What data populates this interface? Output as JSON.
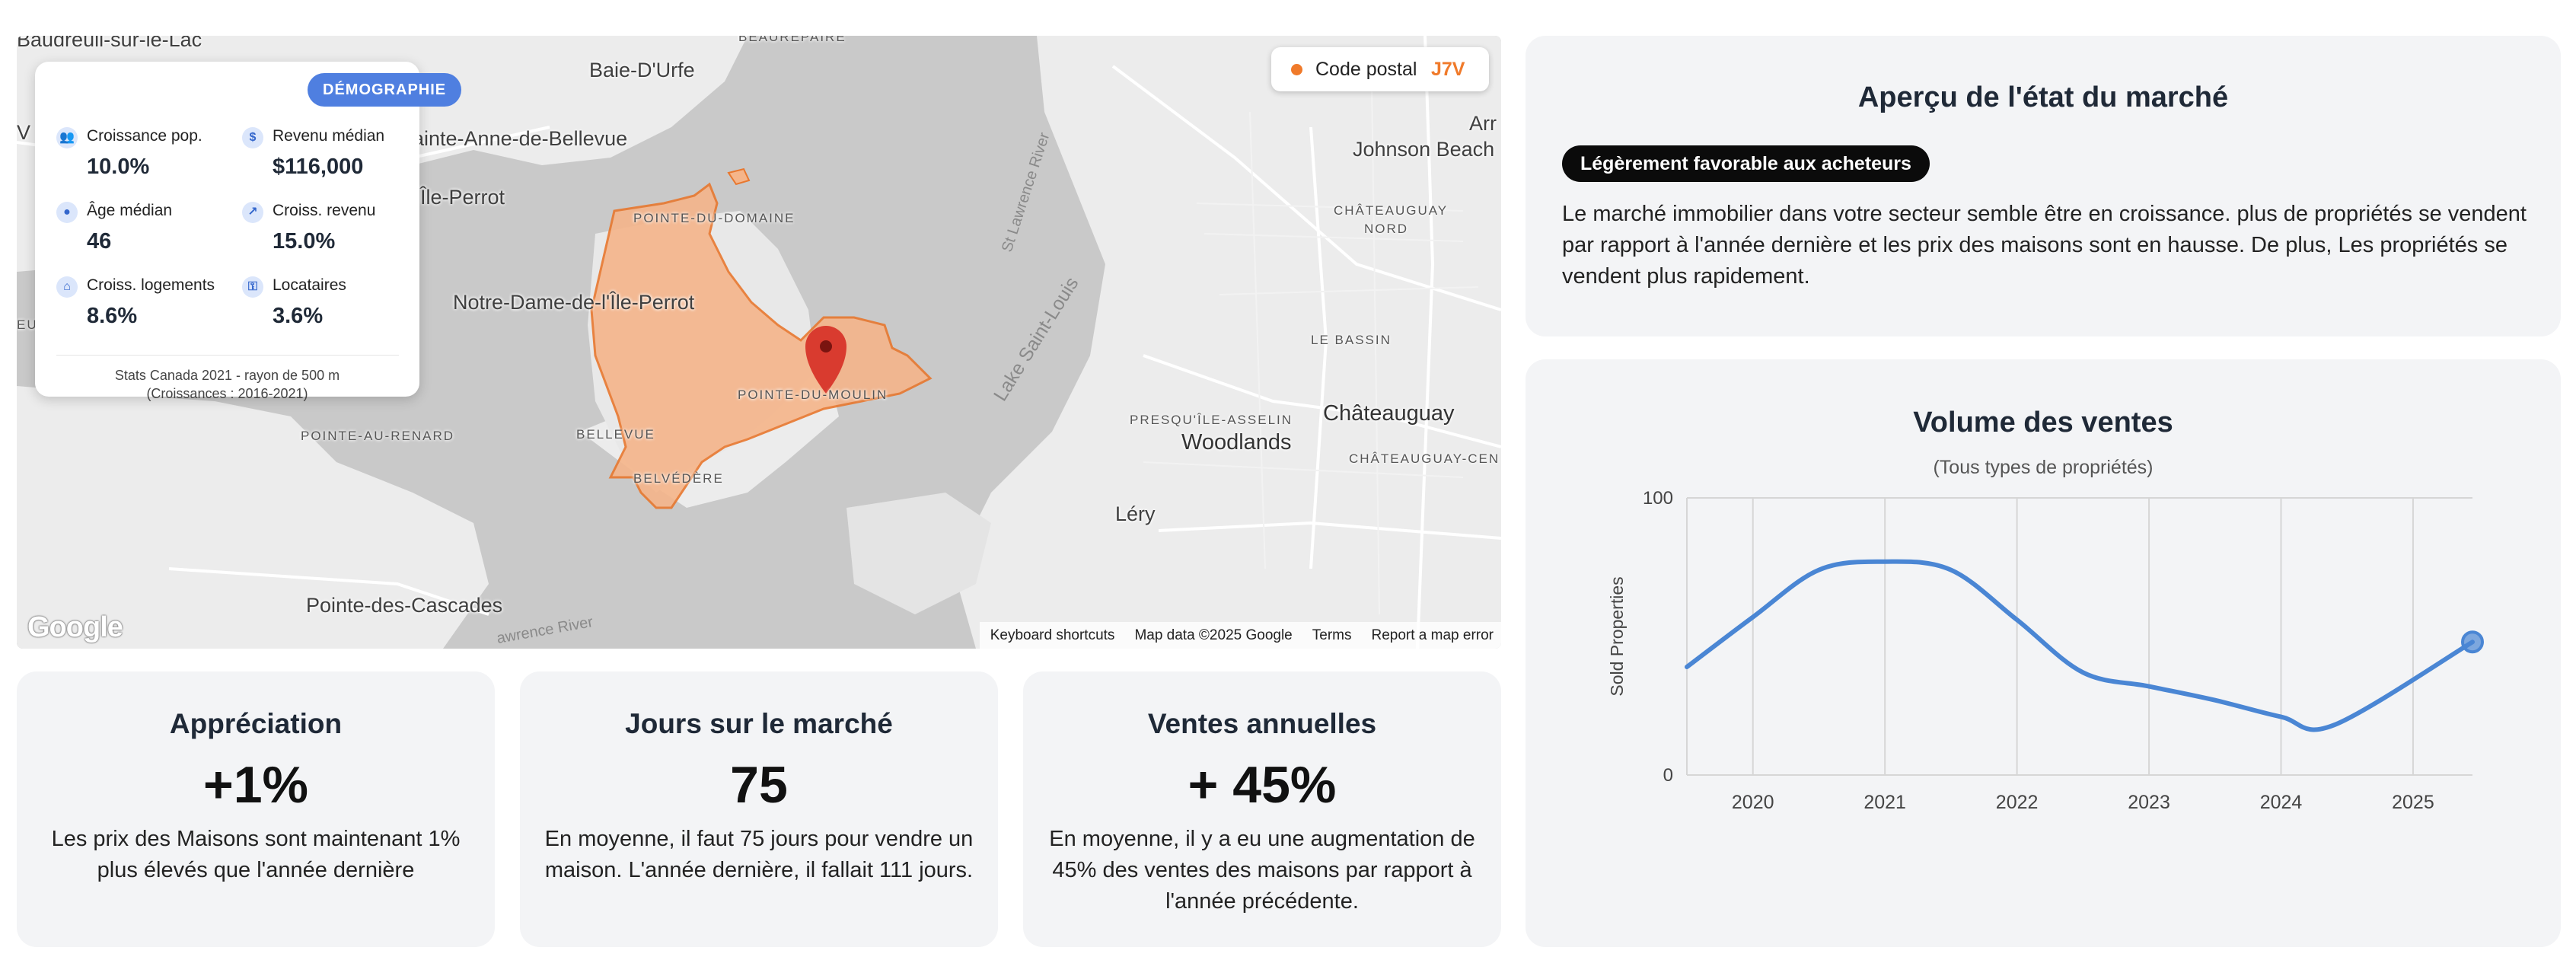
{
  "map": {
    "labels": {
      "top_left_cut": "Baudreuil-sur-le-Lac",
      "baie_durfe": "Baie-D'Urfe",
      "beaurepaire": "BEAUREPAIRE",
      "sainte_anne": "ainte-Anne-de-Bellevue",
      "ile_perrot": "Île-Perrot",
      "notre_dame": "Notre-Dame-de-l'Île-Perrot",
      "pointe_du_domaine": "POINTE-DU-DOMAINE",
      "pointe_du_moulin": "POINTE-DU-MOULIN",
      "bellevue": "BELLEVUE",
      "belvedere": "BELVÉDÈRE",
      "pointe_au_renard": "POINTE-AU-RENARD",
      "pointe_des_cascades": "Pointe-des-Cascades",
      "johnson_beach": "Johnson Beach",
      "chateauguay_nord_1": "CHÂTEAUGUAY",
      "chateauguay_nord_2": "NORD",
      "le_bassin": "LE BASSIN",
      "presqu_ile": "PRESQU'ÎLE-ASSELIN",
      "chateauguay": "Châteauguay",
      "woodlands": "Woodlands",
      "chateauguay_cen": "CHÂTEAUGUAY-CEN",
      "lery": "Léry",
      "st_lawrence": "St Lawrence River",
      "lake_st_louis": "Lake Saint-Louis",
      "arr": "Arr",
      "eu": "EU",
      "v": "V",
      "river_bottom": "awrence River"
    },
    "demographics": {
      "badge": "DÉMOGRAPHIE",
      "stats": [
        {
          "icon": "people-icon",
          "glyph": "👥",
          "label": "Croissance pop.",
          "value": "10.0%"
        },
        {
          "icon": "dollar-icon",
          "glyph": "$",
          "label": "Revenu médian",
          "value": "$116,000"
        },
        {
          "icon": "person-icon",
          "glyph": "●",
          "label": "Âge médian",
          "value": "46"
        },
        {
          "icon": "trend-up-icon",
          "glyph": "↗",
          "label": "Croiss. revenu",
          "value": "15.0%"
        },
        {
          "icon": "home-icon",
          "glyph": "⌂",
          "label": "Croiss. logements",
          "value": "8.6%"
        },
        {
          "icon": "key-icon",
          "glyph": "⚿",
          "label": "Locataires",
          "value": "3.6%"
        }
      ],
      "footer_line1": "Stats Canada 2021 - rayon de 500 m",
      "footer_line2": "(Croissances : 2016-2021)"
    },
    "postal": {
      "label": "Code postal",
      "value": "J7V"
    },
    "google_logo": "Google",
    "footer": {
      "shortcuts": "Keyboard shortcuts",
      "map_data": "Map data ©2025 Google",
      "terms": "Terms",
      "report": "Report a map error"
    },
    "colors": {
      "zone": "#f5b58a",
      "zone_border": "#e8772e",
      "pin": "#d93b2f"
    }
  },
  "kpis": [
    {
      "title": "Appréciation",
      "value": "+1%",
      "desc": "Les prix des Maisons sont maintenant 1% plus élevés que l'année dernière"
    },
    {
      "title": "Jours sur le marché",
      "value": "75",
      "desc": "En moyenne, il faut 75 jours pour vendre un maison. L'année dernière, il fallait 111 jours."
    },
    {
      "title": "Ventes annuelles",
      "value": "+ 45%",
      "desc": "En moyenne, il y a eu une augmentation de 45% des ventes des maisons par rapport à l'année précédente."
    }
  ],
  "market": {
    "title": "Aperçu de l'état du marché",
    "badge": "Légèrement favorable aux acheteurs",
    "text": "Le marché immobilier dans votre secteur semble être en croissance. plus de propriétés se vendent par rapport à l'année dernière et les prix des maisons sont en hausse. De plus, Les propriétés se vendent plus rapidement."
  },
  "volume": {
    "title": "Volume des ventes",
    "subtitle": "(Tous types de propriétés)"
  },
  "chart_data": {
    "type": "line",
    "x": [
      2019.5,
      2020,
      2020.5,
      2021,
      2021.5,
      2022,
      2022.5,
      2023,
      2023.5,
      2024,
      2024.4,
      2025.45
    ],
    "series": [
      {
        "values": [
          39,
          57,
          74,
          77,
          74,
          56,
          37,
          32,
          27,
          21,
          18,
          48
        ]
      }
    ],
    "xticks": [
      "2020",
      "2021",
      "2022",
      "2023",
      "2024",
      "2025"
    ],
    "xtick_values": [
      2020,
      2021,
      2022,
      2023,
      2024,
      2025
    ],
    "yticks": [
      "0",
      "100"
    ],
    "ylabel": "Sold Properties",
    "xlim": [
      2019.5,
      2025.45
    ],
    "ylim": [
      0,
      100
    ],
    "grid": true,
    "line_color": "#4a86d4"
  }
}
